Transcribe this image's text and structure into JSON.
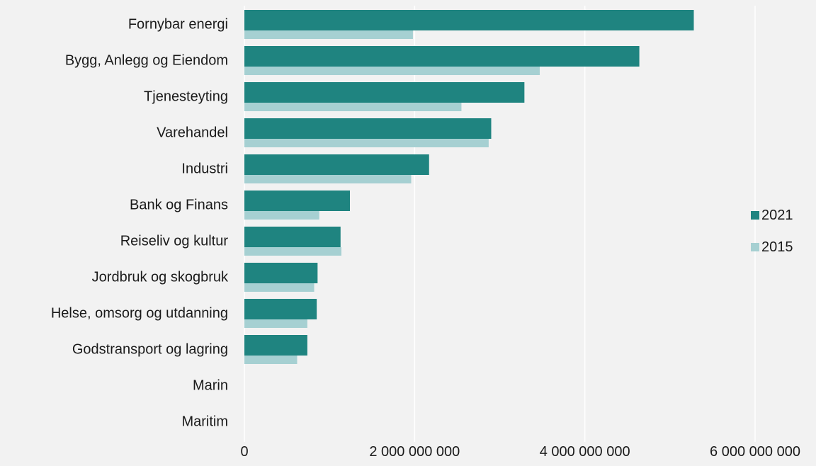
{
  "colors": {
    "background": "#f2f2f2",
    "series_2021": "#1f8480",
    "series_2015": "#a6d0d2",
    "gridline": "#ffffff"
  },
  "chart_data": {
    "type": "bar",
    "orientation": "horizontal",
    "title": "",
    "xlabel": "",
    "ylabel": "",
    "categories": [
      "Fornybar energi",
      "Bygg, Anlegg og Eiendom",
      "Tjenesteyting",
      "Varehandel",
      "Industri",
      "Bank og Finans",
      "Reiseliv og kultur",
      "Jordbruk og skogbruk",
      "Helse, omsorg og utdanning",
      "Godstransport og lagring",
      "Marin",
      "Maritim"
    ],
    "series": [
      {
        "name": "2021",
        "color": "#1f8480",
        "values": [
          5280000000,
          4640000000,
          3290000000,
          2900000000,
          2170000000,
          1240000000,
          1130000000,
          860000000,
          850000000,
          740000000,
          0,
          0
        ]
      },
      {
        "name": "2015",
        "color": "#a6d0d2",
        "values": [
          1980000000,
          3470000000,
          2550000000,
          2870000000,
          1960000000,
          880000000,
          1140000000,
          820000000,
          740000000,
          620000000,
          0,
          0
        ]
      }
    ],
    "xlim": [
      0,
      6000000000
    ],
    "xticks": [
      0,
      2000000000,
      4000000000,
      6000000000
    ],
    "xtick_labels": [
      "0",
      "2 000 000 000",
      "4 000 000 000",
      "6 000 000 000"
    ],
    "grid": true,
    "legend_position": "right"
  }
}
